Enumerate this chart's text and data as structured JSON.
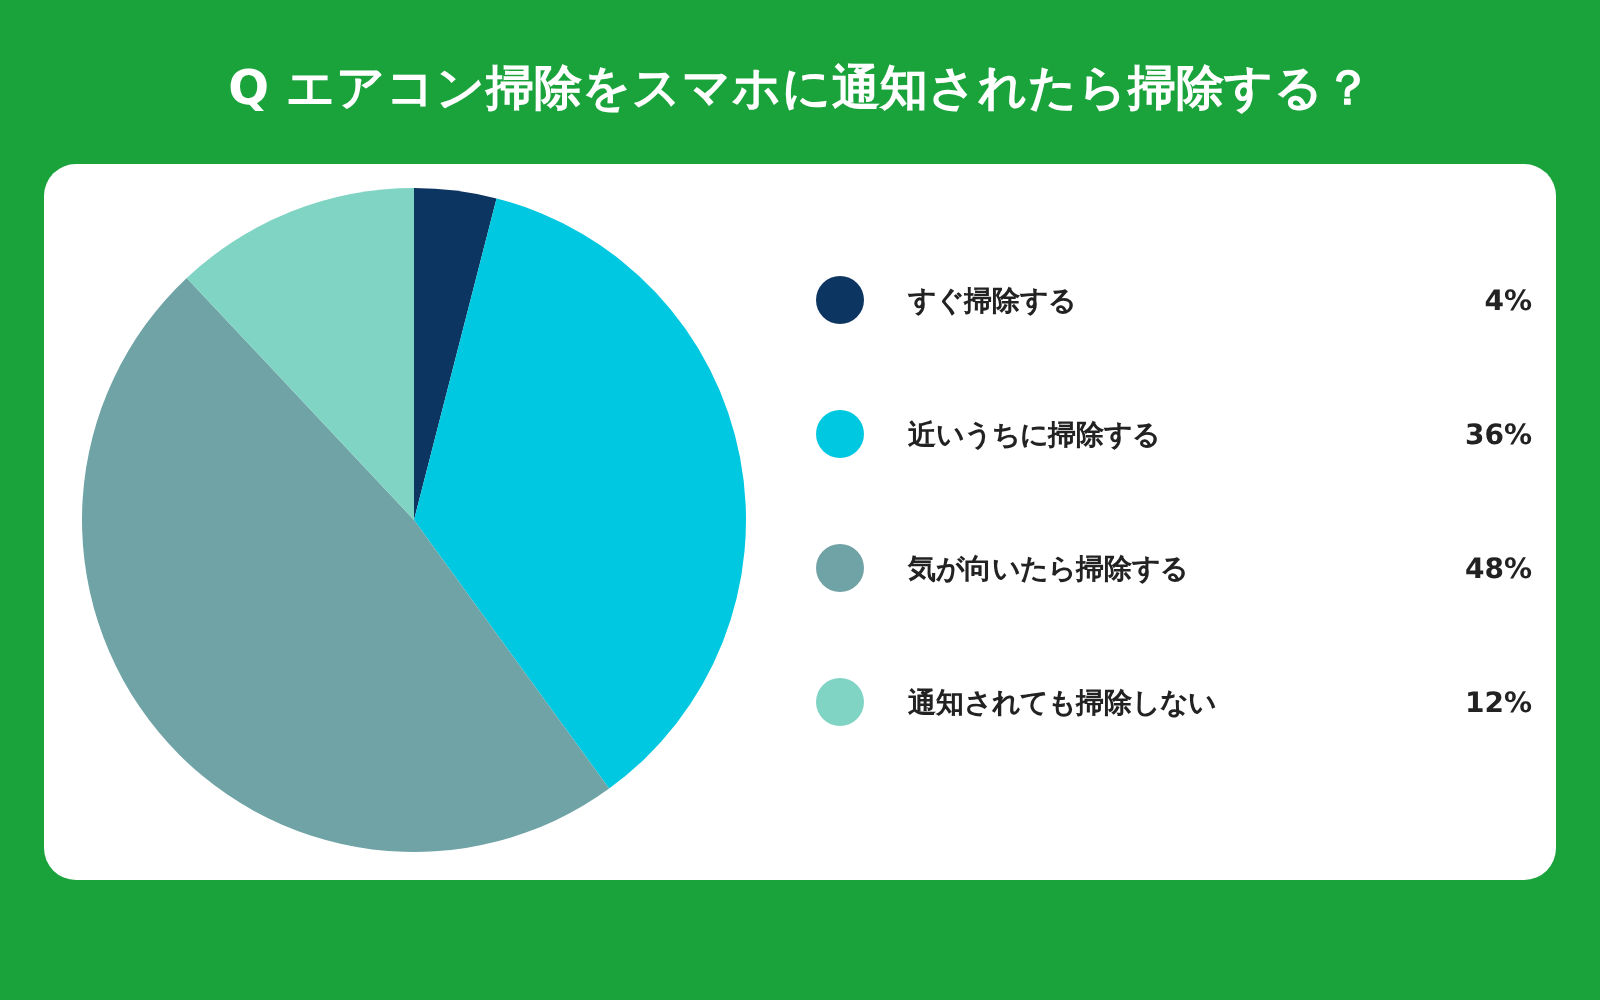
{
  "chart_data": {
    "type": "pie",
    "title": "Q エアコン掃除をスマホに通知されたら掃除する？",
    "categories": [
      "すぐ掃除する",
      "近いうちに掃除する",
      "気が向いたら掃除する",
      "通知されても掃除しない"
    ],
    "values": [
      4,
      36,
      48,
      12
    ],
    "colors": [
      "#0d3561",
      "#00c8e0",
      "#6fa3a6",
      "#7fd4c4"
    ],
    "value_labels": [
      "4%",
      "36%",
      "48%",
      "12%"
    ],
    "legend": "right"
  }
}
